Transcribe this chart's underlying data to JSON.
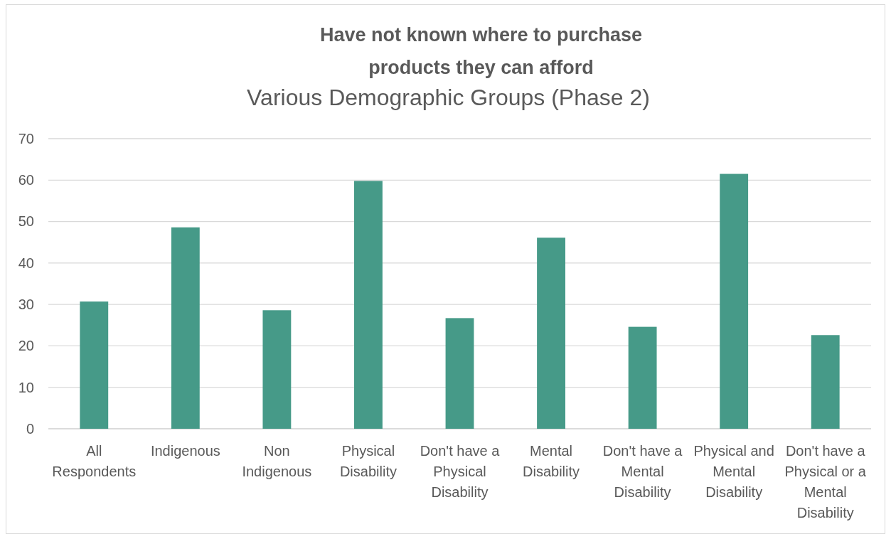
{
  "chart_data": {
    "type": "bar",
    "title": "Have not known where to purchase products they can afford",
    "subtitle": "Various Demographic Groups (Phase 2)",
    "categories": [
      "All Respondents",
      "Indigenous",
      "Non Indigenous",
      "Physical Disability",
      "Don't have a Physical Disability",
      "Mental Disability",
      "Don't have a Mental Disability",
      "Physical and Mental Disability",
      "Don't have a Physical or a Mental Disability"
    ],
    "values": [
      30.7,
      48.6,
      28.6,
      59.8,
      26.7,
      46.1,
      24.6,
      61.5,
      22.6
    ],
    "color": "#469a88",
    "ylim": [
      0,
      70
    ],
    "yticks": [
      0,
      10,
      20,
      30,
      40,
      50,
      60,
      70
    ],
    "grid": true
  }
}
